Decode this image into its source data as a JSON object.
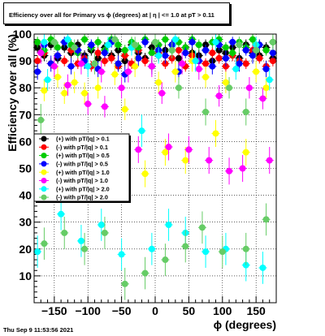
{
  "chart_data": {
    "type": "scatter",
    "title": "Efficiency over all for Primary vs ϕ (degrees) at |  η | <= 1.0 at pT > 0.11",
    "xlabel": "ϕ (degrees)",
    "ylabel": "Efficiency over all (%)",
    "xlim": [
      -180,
      180
    ],
    "ylim": [
      0,
      100
    ],
    "xticks": [
      -150,
      -100,
      -50,
      0,
      50,
      100,
      150
    ],
    "yticks": [
      10,
      20,
      30,
      40,
      50,
      60,
      70,
      80,
      90,
      100
    ],
    "grid": true,
    "legend_position": "middle-left",
    "footer": "Thu Sep  9 11:53:56 2021",
    "series": [
      {
        "name": "(+) with pT/|q| > 0.1",
        "color": "#000000",
        "points": [
          [
            -175,
            95,
            2
          ],
          [
            -165,
            92,
            2
          ],
          [
            -155,
            96,
            2
          ],
          [
            -145,
            91,
            2
          ],
          [
            -135,
            95,
            2
          ],
          [
            -125,
            93,
            2
          ],
          [
            -115,
            96,
            2
          ],
          [
            -105,
            92,
            2
          ],
          [
            -95,
            94,
            2
          ],
          [
            -85,
            91,
            2
          ],
          [
            -75,
            95,
            2
          ],
          [
            -65,
            92,
            2
          ],
          [
            -55,
            94,
            2
          ],
          [
            -45,
            90,
            2
          ],
          [
            -35,
            96,
            2
          ],
          [
            -25,
            93,
            2
          ],
          [
            -15,
            91,
            2
          ],
          [
            -5,
            95,
            2
          ],
          [
            5,
            92,
            2
          ],
          [
            15,
            94,
            2
          ],
          [
            25,
            96,
            2
          ],
          [
            35,
            91,
            2
          ],
          [
            45,
            95,
            2
          ],
          [
            55,
            93,
            2
          ],
          [
            65,
            92,
            2
          ],
          [
            75,
            96,
            2
          ],
          [
            85,
            90,
            2
          ],
          [
            95,
            94,
            2
          ],
          [
            105,
            93,
            2
          ],
          [
            115,
            95,
            2
          ],
          [
            125,
            91,
            2
          ],
          [
            135,
            96,
            2
          ],
          [
            145,
            93,
            2
          ],
          [
            155,
            92,
            2
          ],
          [
            165,
            95,
            2
          ],
          [
            175,
            91,
            2
          ]
        ]
      },
      {
        "name": "(-) with pT/|q| > 0.1",
        "color": "#ff0000",
        "points": [
          [
            -175,
            90,
            2
          ],
          [
            -165,
            93,
            2
          ],
          [
            -155,
            89,
            2
          ],
          [
            -145,
            92,
            2
          ],
          [
            -135,
            90,
            2
          ],
          [
            -125,
            94,
            2
          ],
          [
            -115,
            89,
            2
          ],
          [
            -105,
            91,
            2
          ],
          [
            -95,
            88,
            2
          ],
          [
            -85,
            93,
            2
          ],
          [
            -75,
            90,
            2
          ],
          [
            -65,
            91,
            2
          ],
          [
            -55,
            88,
            2
          ],
          [
            -45,
            92,
            2
          ],
          [
            -35,
            89,
            2
          ],
          [
            -25,
            94,
            2
          ],
          [
            -15,
            90,
            2
          ],
          [
            -5,
            88,
            2
          ],
          [
            5,
            93,
            2
          ],
          [
            15,
            89,
            2
          ],
          [
            25,
            91,
            2
          ],
          [
            35,
            94,
            2
          ],
          [
            45,
            88,
            2
          ],
          [
            55,
            92,
            2
          ],
          [
            65,
            90,
            2
          ],
          [
            75,
            89,
            2
          ],
          [
            85,
            93,
            2
          ],
          [
            95,
            91,
            2
          ],
          [
            105,
            88,
            2
          ],
          [
            115,
            92,
            2
          ],
          [
            125,
            90,
            2
          ],
          [
            135,
            89,
            2
          ],
          [
            145,
            94,
            2
          ],
          [
            155,
            91,
            2
          ],
          [
            165,
            88,
            2
          ],
          [
            175,
            90,
            2
          ]
        ]
      },
      {
        "name": "(+) with pT/|q| > 0.5",
        "color": "#00cc00",
        "points": [
          [
            -175,
            97,
            2
          ],
          [
            -165,
            94,
            2
          ],
          [
            -155,
            98,
            2
          ],
          [
            -145,
            95,
            2
          ],
          [
            -135,
            97,
            2
          ],
          [
            -125,
            96,
            2
          ],
          [
            -115,
            93,
            2
          ],
          [
            -105,
            98,
            2
          ],
          [
            -95,
            95,
            2
          ],
          [
            -85,
            97,
            2
          ],
          [
            -75,
            94,
            2
          ],
          [
            -65,
            98,
            2
          ],
          [
            -55,
            96,
            2
          ],
          [
            -45,
            94,
            2
          ],
          [
            -35,
            97,
            2
          ],
          [
            -25,
            95,
            2
          ],
          [
            -15,
            98,
            2
          ],
          [
            -5,
            93,
            2
          ],
          [
            5,
            96,
            2
          ],
          [
            15,
            98,
            2
          ],
          [
            25,
            94,
            2
          ],
          [
            35,
            97,
            2
          ],
          [
            45,
            95,
            2
          ],
          [
            55,
            98,
            2
          ],
          [
            65,
            96,
            2
          ],
          [
            75,
            94,
            2
          ],
          [
            85,
            97,
            2
          ],
          [
            95,
            98,
            2
          ],
          [
            105,
            95,
            2
          ],
          [
            115,
            93,
            2
          ],
          [
            125,
            97,
            2
          ],
          [
            135,
            95,
            2
          ],
          [
            145,
            98,
            2
          ],
          [
            155,
            96,
            2
          ],
          [
            165,
            94,
            2
          ],
          [
            175,
            97,
            2
          ]
        ]
      },
      {
        "name": "(-) with pT/|q| > 0.5",
        "color": "#0000ff",
        "points": [
          [
            -175,
            86,
            3
          ],
          [
            -165,
            96,
            2
          ],
          [
            -155,
            89,
            3
          ],
          [
            -145,
            92,
            2
          ],
          [
            -135,
            97,
            2
          ],
          [
            -125,
            88,
            3
          ],
          [
            -115,
            94,
            2
          ],
          [
            -105,
            90,
            3
          ],
          [
            -95,
            96,
            2
          ],
          [
            -85,
            87,
            3
          ],
          [
            -75,
            93,
            2
          ],
          [
            -65,
            97,
            2
          ],
          [
            -55,
            89,
            3
          ],
          [
            -45,
            85,
            3
          ],
          [
            -35,
            95,
            2
          ],
          [
            -25,
            91,
            3
          ],
          [
            -15,
            97,
            2
          ],
          [
            -5,
            88,
            3
          ],
          [
            5,
            94,
            2
          ],
          [
            15,
            92,
            3
          ],
          [
            25,
            96,
            2
          ],
          [
            35,
            86,
            3
          ],
          [
            45,
            93,
            2
          ],
          [
            55,
            97,
            2
          ],
          [
            65,
            90,
            3
          ],
          [
            75,
            94,
            2
          ],
          [
            85,
            88,
            3
          ],
          [
            95,
            96,
            2
          ],
          [
            105,
            91,
            3
          ],
          [
            115,
            97,
            2
          ],
          [
            125,
            89,
            3
          ],
          [
            135,
            94,
            2
          ],
          [
            145,
            92,
            3
          ],
          [
            155,
            96,
            2
          ],
          [
            165,
            87,
            3
          ],
          [
            175,
            93,
            2
          ]
        ]
      },
      {
        "name": "(+) with pT/|q| > 1.0",
        "color": "#ffff00",
        "points": [
          [
            -165,
            79,
            4
          ],
          [
            -145,
            84,
            4
          ],
          [
            -135,
            78,
            4
          ],
          [
            -120,
            82,
            4
          ],
          [
            -105,
            78,
            4
          ],
          [
            -85,
            80,
            4
          ],
          [
            -60,
            85,
            4
          ],
          [
            -45,
            72,
            4
          ],
          [
            -30,
            88,
            4
          ],
          [
            -15,
            48,
            5
          ],
          [
            5,
            82,
            4
          ],
          [
            15,
            56,
            5
          ],
          [
            30,
            86,
            4
          ],
          [
            45,
            53,
            5
          ],
          [
            55,
            90,
            4
          ],
          [
            75,
            84,
            4
          ],
          [
            90,
            63,
            5
          ],
          [
            105,
            82,
            4
          ],
          [
            135,
            56,
            5
          ],
          [
            150,
            86,
            4
          ],
          [
            165,
            80,
            4
          ]
        ]
      },
      {
        "name": "(-) with pT/|q| > 1.0",
        "color": "#ff00ff",
        "points": [
          [
            -170,
            93,
            4
          ],
          [
            -150,
            88,
            4
          ],
          [
            -130,
            81,
            4
          ],
          [
            -110,
            89,
            4
          ],
          [
            -100,
            74,
            4
          ],
          [
            -80,
            86,
            4
          ],
          [
            -75,
            73,
            4
          ],
          [
            -50,
            80,
            4
          ],
          [
            -40,
            86,
            4
          ],
          [
            -25,
            57,
            5
          ],
          [
            -5,
            88,
            4
          ],
          [
            10,
            78,
            4
          ],
          [
            20,
            58,
            5
          ],
          [
            40,
            89,
            4
          ],
          [
            50,
            57,
            5
          ],
          [
            65,
            87,
            4
          ],
          [
            80,
            53,
            5
          ],
          [
            95,
            77,
            4
          ],
          [
            110,
            49,
            5
          ],
          [
            130,
            50,
            5
          ],
          [
            140,
            80,
            4
          ],
          [
            160,
            76,
            4
          ],
          [
            170,
            53,
            5
          ]
        ]
      },
      {
        "name": "(+) with pT/|q| > 2.0",
        "color": "#00ffff",
        "points": [
          [
            -175,
            19,
            6
          ],
          [
            -165,
            97,
            3
          ],
          [
            -160,
            83,
            4
          ],
          [
            -140,
            33,
            6
          ],
          [
            -130,
            98,
            3
          ],
          [
            -110,
            23,
            6
          ],
          [
            -100,
            88,
            4
          ],
          [
            -80,
            29,
            6
          ],
          [
            -70,
            96,
            3
          ],
          [
            -50,
            18,
            6
          ],
          [
            -35,
            95,
            3
          ],
          [
            -20,
            64,
            6
          ],
          [
            -5,
            20,
            6
          ],
          [
            5,
            92,
            3
          ],
          [
            20,
            29,
            6
          ],
          [
            30,
            98,
            3
          ],
          [
            45,
            26,
            6
          ],
          [
            60,
            90,
            4
          ],
          [
            75,
            19,
            6
          ],
          [
            90,
            97,
            3
          ],
          [
            105,
            20,
            6
          ],
          [
            120,
            87,
            4
          ],
          [
            135,
            14,
            6
          ],
          [
            150,
            96,
            3
          ],
          [
            160,
            13,
            6
          ],
          [
            170,
            83,
            4
          ]
        ]
      },
      {
        "name": "(-) with pT/|q| > 2.0",
        "color": "#66cc66",
        "points": [
          [
            -170,
            68,
            6
          ],
          [
            -165,
            22,
            6
          ],
          [
            -150,
            97,
            3
          ],
          [
            -135,
            26,
            6
          ],
          [
            -120,
            95,
            3
          ],
          [
            -105,
            20,
            6
          ],
          [
            -90,
            89,
            4
          ],
          [
            -75,
            26,
            6
          ],
          [
            -60,
            98,
            3
          ],
          [
            -45,
            7,
            6
          ],
          [
            -30,
            96,
            3
          ],
          [
            -15,
            11,
            6
          ],
          [
            0,
            97,
            3
          ],
          [
            15,
            16,
            6
          ],
          [
            25,
            94,
            3
          ],
          [
            35,
            80,
            4
          ],
          [
            45,
            21,
            6
          ],
          [
            70,
            28,
            6
          ],
          [
            75,
            71,
            5
          ],
          [
            100,
            19,
            6
          ],
          [
            110,
            80,
            4
          ],
          [
            125,
            96,
            3
          ],
          [
            135,
            20,
            6
          ],
          [
            135,
            71,
            5
          ],
          [
            150,
            94,
            3
          ],
          [
            165,
            31,
            6
          ],
          [
            175,
            97,
            3
          ]
        ]
      }
    ]
  }
}
